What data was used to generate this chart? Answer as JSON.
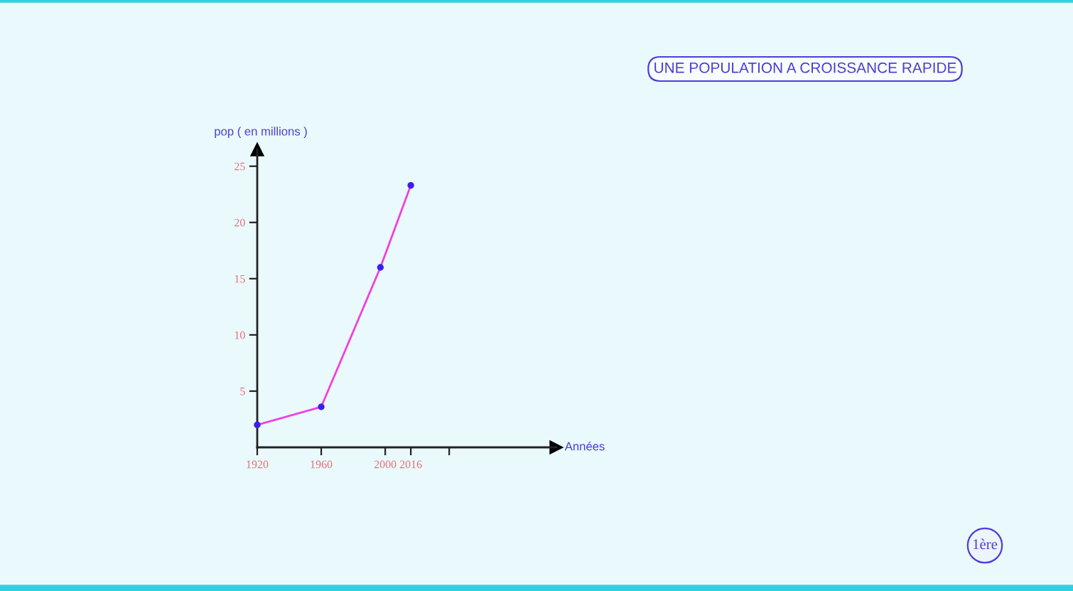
{
  "chart_data": {
    "type": "line",
    "title": "UNE POPULATION A CROISSANCE RAPIDE",
    "xlabel": "Années",
    "ylabel": "pop ( en millions )",
    "annotations": [
      "1ère"
    ],
    "x": [
      1920,
      1960,
      1997,
      2016
    ],
    "series": [
      {
        "color": "#f23ee2",
        "colors": [
          "#3a1ff0",
          "#3a1ff0",
          "#3a1ff0",
          "#3a1ff0"
        ],
        "values": [
          2,
          3.6,
          16,
          23.3
        ]
      }
    ],
    "xlim": [
      1920,
      2107
    ],
    "ylim": [
      0,
      26.5
    ],
    "xticks": [
      1920,
      1960,
      2000,
      2016,
      {
        "value": 2040,
        "label": null
      }
    ],
    "yticks": [
      5,
      10,
      15,
      20,
      25
    ],
    "marker": "circle",
    "line_style": "solid"
  }
}
